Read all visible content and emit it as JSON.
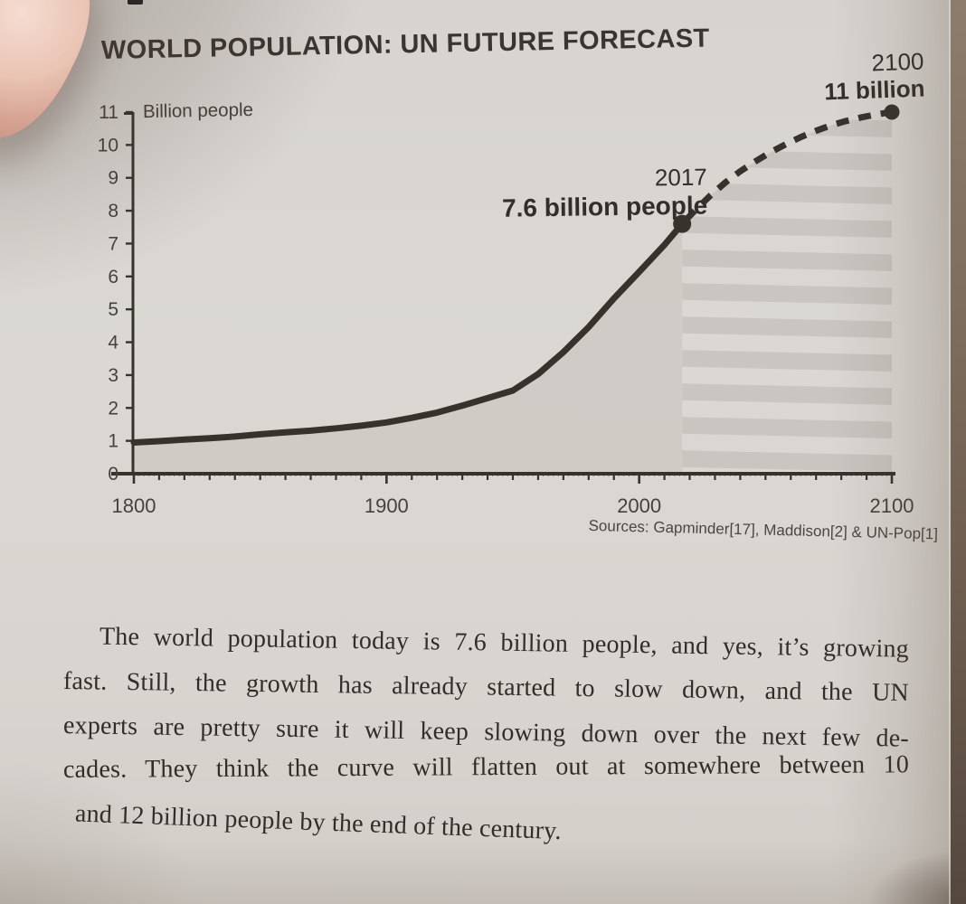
{
  "colors": {
    "page": "#d8d5d0",
    "ink": "#37322c",
    "tick_label": "#46413b",
    "area_fill": "#c2bdb6",
    "stripe": "#c9c5c0",
    "photo_edge_brown": "#6f5f50",
    "finger_skin": "#e6bcab"
  },
  "chart_data": {
    "type": "line",
    "title": "WORLD POPULATION: UN FUTURE FORECAST",
    "ylabel": "Billion people",
    "xlabel": "",
    "source": "Sources: Gapminder[17], Maddison[2] & UN-Pop[1]",
    "grid": false,
    "legend_position": "none",
    "xlim": [
      1800,
      2100
    ],
    "ylim": [
      0,
      11
    ],
    "x_ticks": [
      1800,
      1900,
      2000,
      2100
    ],
    "x_minor_step": 10,
    "y_ticks": [
      0,
      1,
      2,
      3,
      4,
      5,
      6,
      7,
      8,
      9,
      10,
      11
    ],
    "series": [
      {
        "name": "historical-population",
        "style": "solid",
        "x": [
          1800,
          1810,
          1820,
          1830,
          1840,
          1850,
          1860,
          1870,
          1880,
          1890,
          1900,
          1910,
          1920,
          1930,
          1940,
          1950,
          1960,
          1970,
          1980,
          1990,
          2000,
          2010,
          2017
        ],
        "y": [
          0.95,
          0.99,
          1.04,
          1.08,
          1.13,
          1.2,
          1.26,
          1.31,
          1.38,
          1.46,
          1.56,
          1.7,
          1.86,
          2.07,
          2.3,
          2.53,
          3.03,
          3.7,
          4.46,
          5.33,
          6.14,
          6.96,
          7.6
        ]
      },
      {
        "name": "un-future-forecast",
        "style": "dashed",
        "x": [
          2017,
          2022,
          2028,
          2034,
          2040,
          2046,
          2052,
          2058,
          2064,
          2070,
          2076,
          2082,
          2088,
          2094,
          2100
        ],
        "y": [
          7.6,
          8.0,
          8.45,
          8.85,
          9.2,
          9.5,
          9.78,
          10.02,
          10.24,
          10.43,
          10.6,
          10.73,
          10.84,
          10.93,
          11.0
        ]
      }
    ],
    "annotations": [
      {
        "x": 2017,
        "y": 7.6,
        "year_label": "2017",
        "value_label": "7.6 billion people"
      },
      {
        "x": 2100,
        "y": 11.0,
        "year_label": "2100",
        "value_label": "11 billion"
      }
    ]
  },
  "paragraph": {
    "lines": [
      "The world population today is 7.6 billion people, and yes, it’s growing",
      "fast. Still, the growth has already started to slow down, and the UN",
      "experts are pretty sure it will keep slowing down over the next few de-",
      "cades. They think the curve will flatten out at somewhere between 10",
      "and 12 billion people by the end of the century."
    ]
  }
}
